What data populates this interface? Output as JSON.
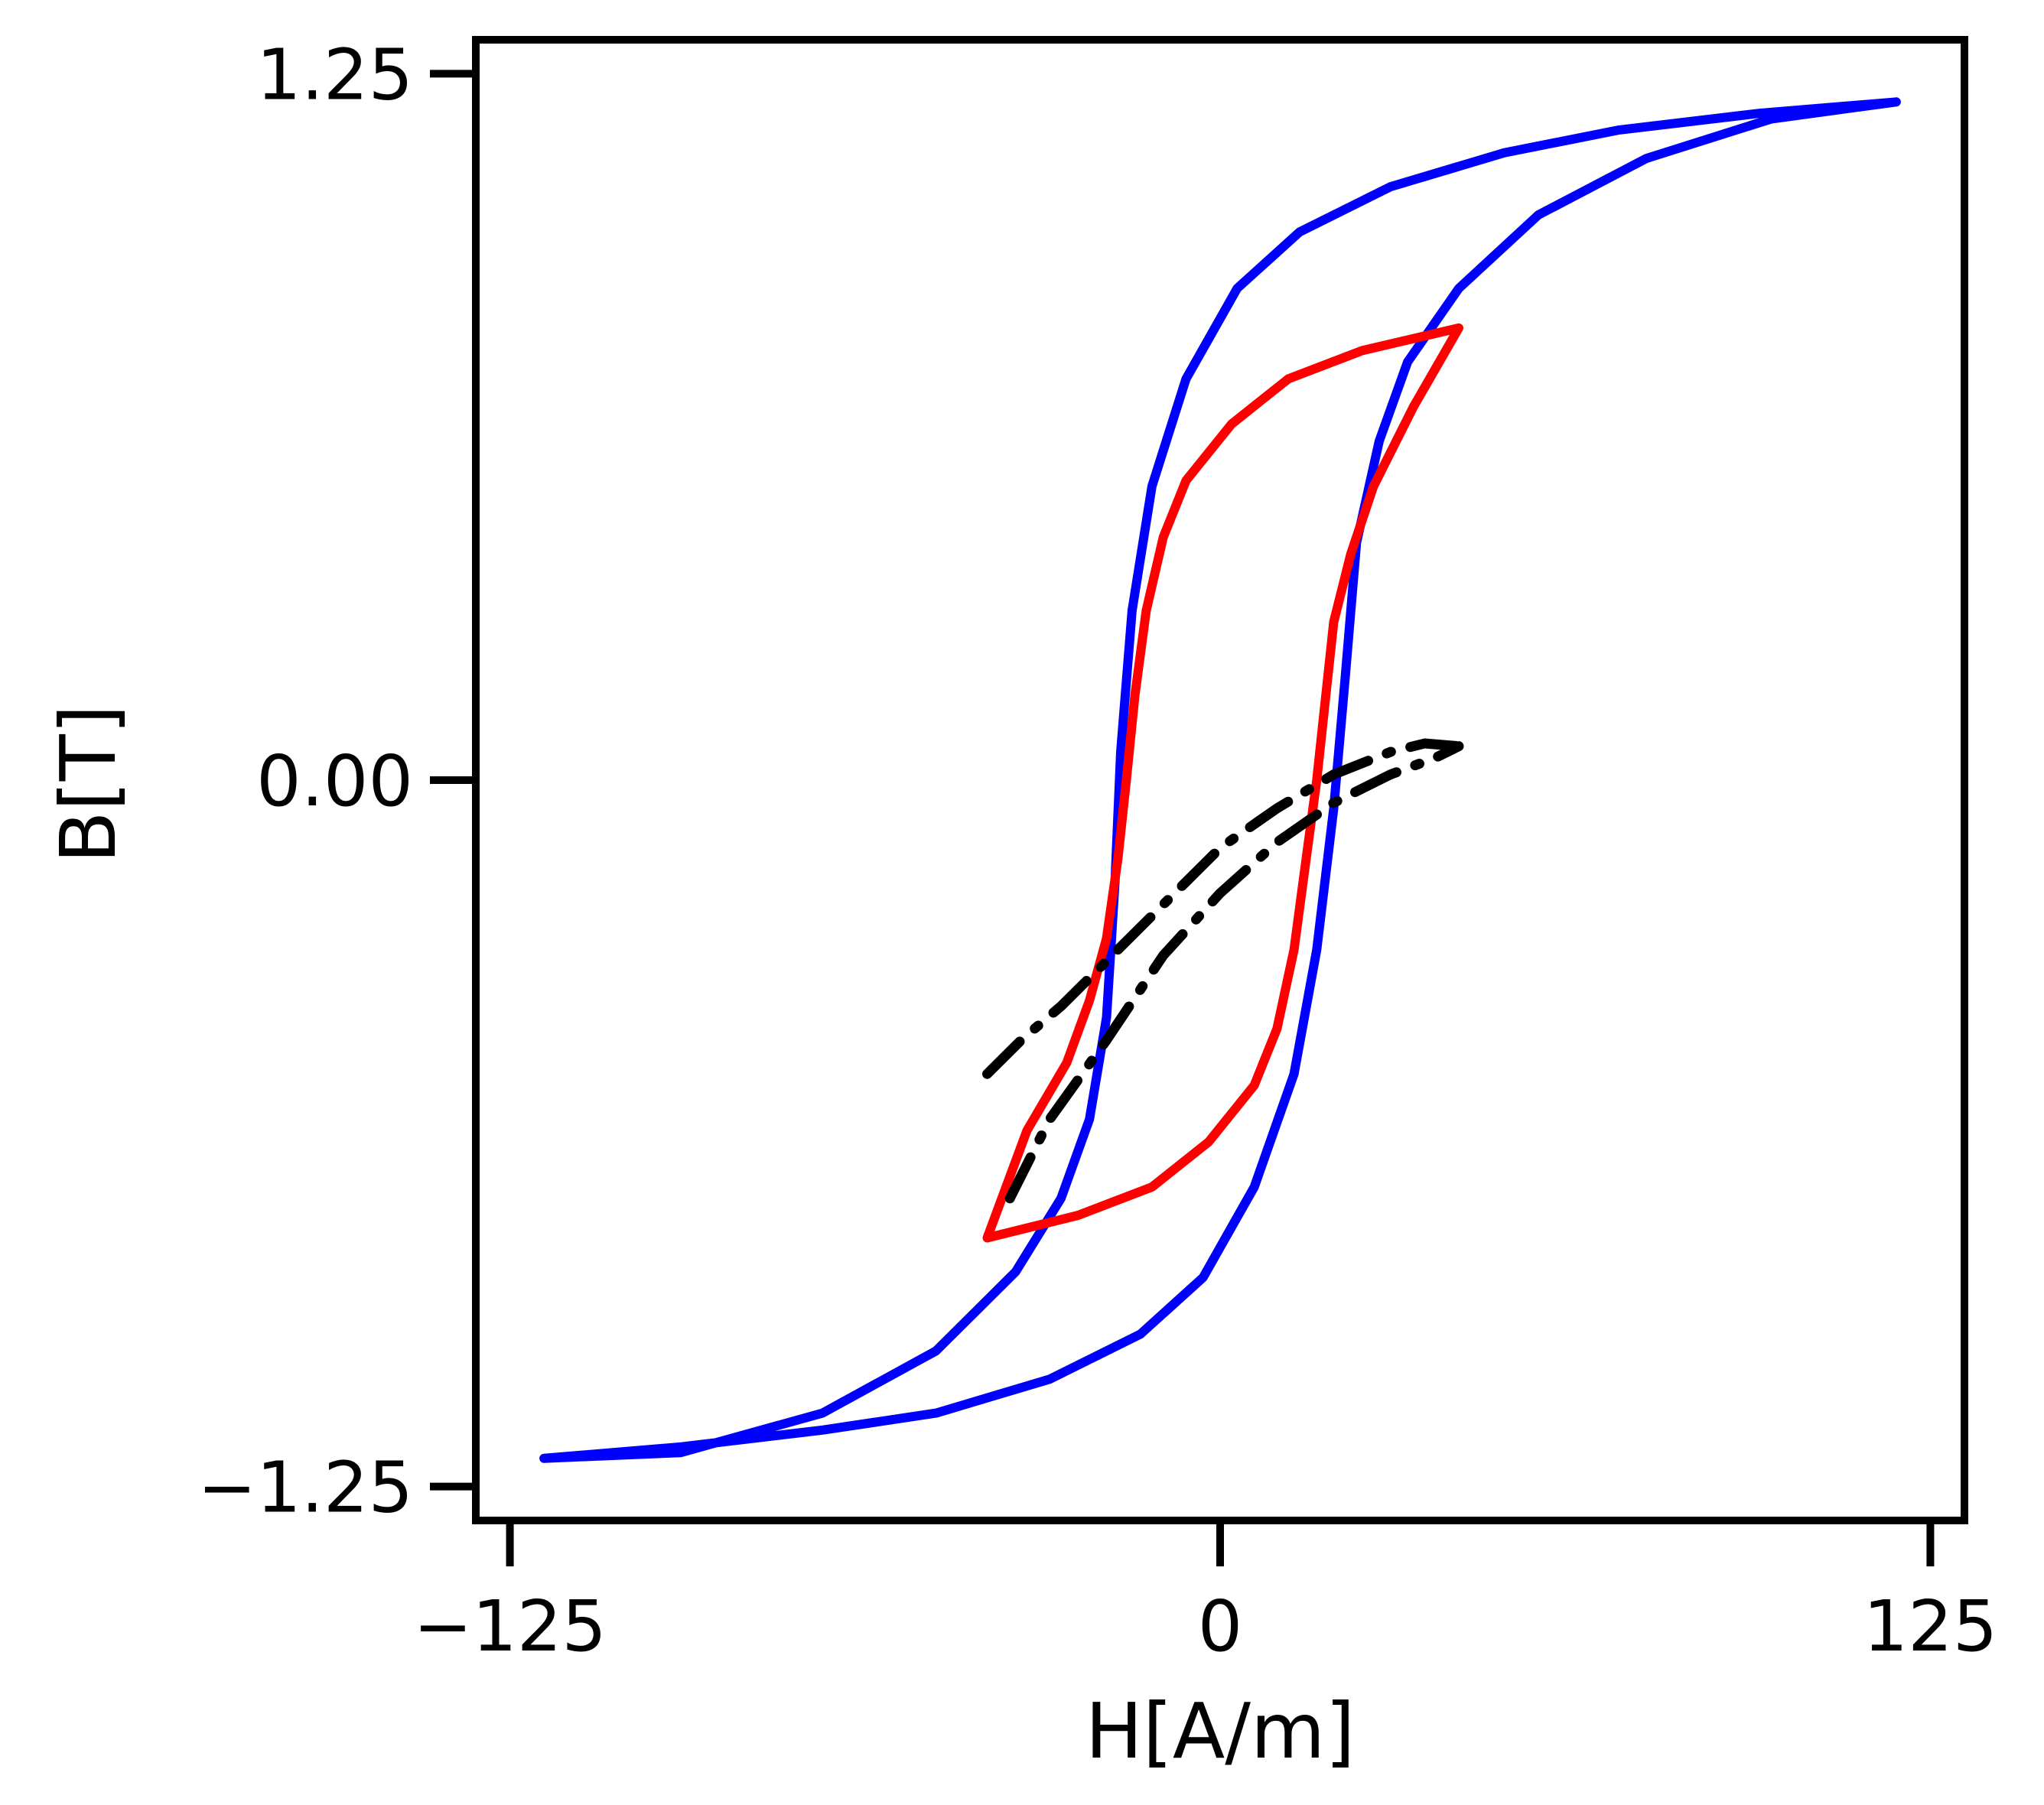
{
  "chart_data": {
    "type": "line",
    "title": "",
    "xlabel": "H[A/m]",
    "ylabel": "B[T]",
    "xlim": [
      -131,
      131
    ],
    "ylim": [
      -1.31,
      1.31
    ],
    "xticks": [
      {
        "value": -125,
        "label": "−125"
      },
      {
        "value": 0,
        "label": "0"
      },
      {
        "value": 125,
        "label": "125"
      }
    ],
    "yticks": [
      {
        "value": 1.25,
        "label": "1.25"
      },
      {
        "value": 0.0,
        "label": "0.00"
      },
      {
        "value": -1.25,
        "label": "−1.25"
      }
    ],
    "grid": false,
    "legend": "none",
    "series": [
      {
        "color": "#0000ff",
        "style": "solid",
        "points": [
          [
            119,
            1.2
          ],
          [
            95,
            1.18
          ],
          [
            70,
            1.15
          ],
          [
            50,
            1.11
          ],
          [
            30,
            1.05
          ],
          [
            14,
            0.97
          ],
          [
            3,
            0.87
          ],
          [
            -6,
            0.71
          ],
          [
            -12,
            0.52
          ],
          [
            -15.5,
            0.3
          ],
          [
            -17.5,
            0.05
          ],
          [
            -18.5,
            -0.18
          ],
          [
            -20,
            -0.42
          ],
          [
            -23,
            -0.6
          ],
          [
            -28,
            -0.74
          ],
          [
            -36,
            -0.87
          ],
          [
            -50,
            -1.01
          ],
          [
            -70,
            -1.12
          ],
          [
            -95,
            -1.19
          ],
          [
            -119,
            -1.2
          ],
          [
            -95,
            -1.18
          ],
          [
            -70,
            -1.15
          ],
          [
            -50,
            -1.12
          ],
          [
            -30,
            -1.06
          ],
          [
            -14,
            -0.98
          ],
          [
            -3,
            -0.88
          ],
          [
            6,
            -0.72
          ],
          [
            13,
            -0.52
          ],
          [
            17,
            -0.3
          ],
          [
            20,
            -0.05
          ],
          [
            22,
            0.18
          ],
          [
            24,
            0.42
          ],
          [
            28,
            0.6
          ],
          [
            33,
            0.74
          ],
          [
            42,
            0.87
          ],
          [
            56,
            1.0
          ],
          [
            75,
            1.1
          ],
          [
            97,
            1.17
          ],
          [
            119,
            1.2
          ]
        ]
      },
      {
        "color": "#ff0000",
        "style": "solid",
        "points": [
          [
            42,
            0.8
          ],
          [
            25,
            0.76
          ],
          [
            12,
            0.71
          ],
          [
            2,
            0.63
          ],
          [
            -6,
            0.53
          ],
          [
            -10,
            0.43
          ],
          [
            -13,
            0.3
          ],
          [
            -15,
            0.15
          ],
          [
            -16.5,
            0.0
          ],
          [
            -18,
            -0.14
          ],
          [
            -20,
            -0.28
          ],
          [
            -23,
            -0.39
          ],
          [
            -27,
            -0.5
          ],
          [
            -34,
            -0.62
          ],
          [
            -41,
            -0.81
          ],
          [
            -25,
            -0.77
          ],
          [
            -12,
            -0.72
          ],
          [
            -2,
            -0.64
          ],
          [
            6,
            -0.54
          ],
          [
            10,
            -0.44
          ],
          [
            13,
            -0.3
          ],
          [
            15,
            -0.15
          ],
          [
            17,
            0.0
          ],
          [
            18.5,
            0.14
          ],
          [
            20,
            0.28
          ],
          [
            23,
            0.4
          ],
          [
            27,
            0.52
          ],
          [
            34,
            0.66
          ],
          [
            42,
            0.8
          ]
        ]
      },
      {
        "color": "#000000",
        "style": "dashdot",
        "points": [
          [
            -41,
            -0.52
          ],
          [
            -35,
            -0.46
          ],
          [
            -28,
            -0.4
          ],
          [
            -20,
            -0.32
          ],
          [
            -10,
            -0.22
          ],
          [
            0,
            -0.12
          ],
          [
            10,
            -0.05
          ],
          [
            20,
            0.01
          ],
          [
            30,
            0.05
          ],
          [
            36,
            0.065
          ],
          [
            42,
            0.06
          ]
        ]
      },
      {
        "color": "#000000",
        "style": "dashdot",
        "points": [
          [
            -37,
            -0.74
          ],
          [
            -30,
            -0.6
          ],
          [
            -20,
            -0.46
          ],
          [
            -10,
            -0.31
          ],
          [
            0,
            -0.2
          ],
          [
            10,
            -0.11
          ],
          [
            20,
            -0.04
          ],
          [
            30,
            0.01
          ],
          [
            38,
            0.04
          ],
          [
            42,
            0.06
          ]
        ]
      }
    ]
  }
}
